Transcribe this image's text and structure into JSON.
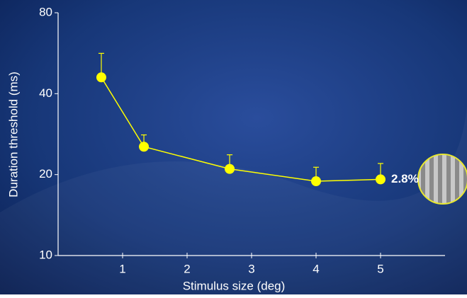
{
  "chart_data": {
    "type": "line",
    "xlabel": "Stimulus size (deg)",
    "ylabel": "Duration threshold (ms)",
    "x": [
      0.67,
      1.33,
      2.66,
      4.0,
      5.0
    ],
    "series": [
      {
        "color": "#ffff00",
        "values": [
          46,
          25.4,
          21.0,
          18.9,
          19.2
        ],
        "errors": [
          10.5,
          2.7,
          2.7,
          2.4,
          2.8
        ]
      }
    ],
    "xlim": [
      0,
      6
    ],
    "xticks": [
      1,
      2,
      3,
      4,
      5
    ],
    "ylim": [
      10,
      80
    ],
    "yticks": [
      10,
      20,
      40,
      80
    ],
    "log_y": true,
    "annotation": "2.8%"
  }
}
